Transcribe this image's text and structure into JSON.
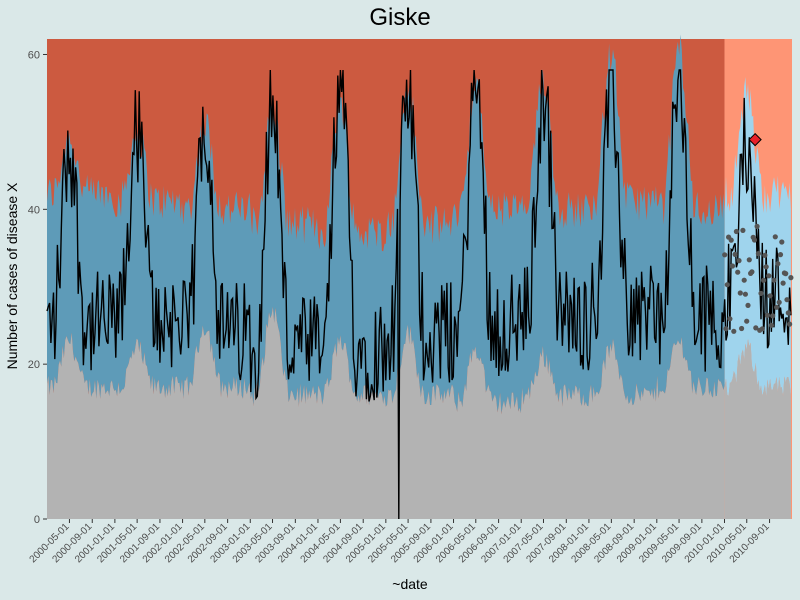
{
  "chart_data": {
    "type": "area",
    "title": "Giske",
    "xlabel": "~date",
    "ylabel": "Number of cases of disease X",
    "ylim": [
      0,
      62
    ],
    "yticks": [
      0,
      20,
      40,
      60
    ],
    "xlim": [
      "2000-01-01",
      "2010-12-31"
    ],
    "xticks": [
      "2000-05-01",
      "2000-09-01",
      "2001-01-01",
      "2001-05-01",
      "2001-09-01",
      "2002-01-01",
      "2002-05-01",
      "2002-09-01",
      "2003-01-01",
      "2003-05-01",
      "2003-09-01",
      "2004-01-01",
      "2004-05-01",
      "2004-09-01",
      "2005-01-01",
      "2005-05-01",
      "2005-09-01",
      "2006-01-01",
      "2006-05-01",
      "2006-09-01",
      "2007-01-01",
      "2007-05-01",
      "2007-09-01",
      "2008-01-01",
      "2008-05-01",
      "2008-09-01",
      "2009-01-01",
      "2009-05-01",
      "2009-09-01",
      "2010-01-01",
      "2010-05-01",
      "2010-09-01"
    ],
    "forecast_start": "2010-01-01",
    "grid": false,
    "legend": "none",
    "bands": {
      "normal_lower_peaks": [
        23,
        22,
        25,
        27,
        23,
        24,
        22,
        21,
        22,
        23,
        22
      ],
      "normal_lower_troughs": [
        17,
        17,
        17,
        16,
        16,
        16,
        15,
        16,
        16,
        17,
        17
      ],
      "normal_upper_peaks": [
        49,
        50,
        51,
        53,
        54,
        56,
        55,
        57,
        60,
        61,
        55
      ],
      "normal_upper_troughs": [
        42,
        41,
        40,
        38,
        37,
        38,
        40,
        40,
        41,
        40,
        42
      ]
    },
    "series": [
      {
        "name": "observed",
        "type": "line",
        "color": "#000000",
        "seasonal_peaks": [
          48,
          50,
          52,
          54,
          56,
          55,
          56,
          55,
          55,
          56,
          49
        ],
        "seasonal_troughs": [
          25,
          26,
          24,
          22,
          22,
          24,
          25,
          26,
          27,
          26,
          29
        ],
        "min_value": {
          "date": "2005-03-15",
          "value": 0
        }
      },
      {
        "name": "forecast",
        "type": "points",
        "color": "#555555",
        "range": [
          24,
          38
        ]
      },
      {
        "name": "alert",
        "type": "diamond",
        "color": "#e8202a",
        "point": {
          "date": "2010-06-15",
          "value": 49
        }
      }
    ],
    "colors": {
      "background": "#dae8e8",
      "high_zone": "#cc5a40",
      "normal_zone": "#5e9bb8",
      "low_zone": "#b3b3b3",
      "forecast_high_zone": "#fe9575",
      "forecast_normal_zone": "#9fd4ed",
      "forecast_low_zone": "#b3b3b3"
    }
  }
}
